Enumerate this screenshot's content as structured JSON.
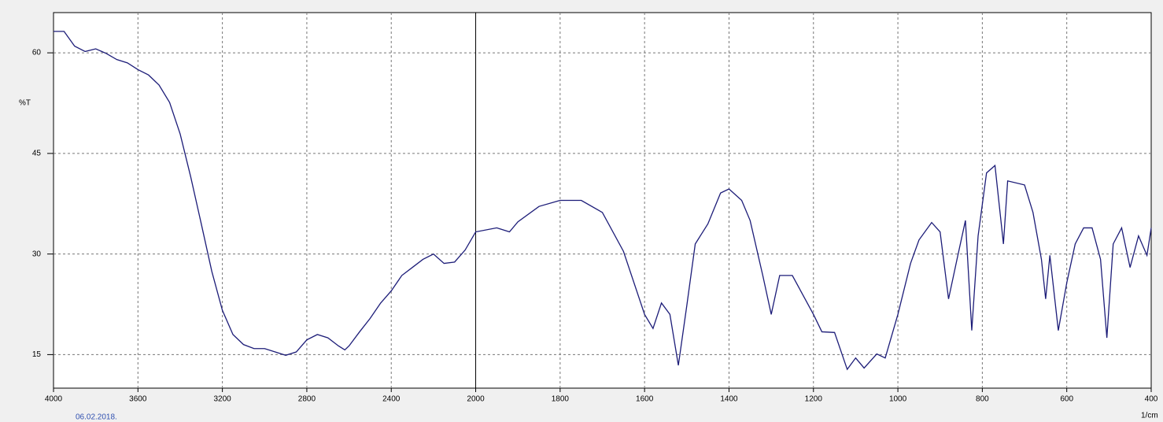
{
  "chart_data": {
    "type": "line",
    "y_label": "%T",
    "x_label": "1/cm",
    "date": "06.02.2018.",
    "xlim": [
      4000,
      400
    ],
    "xticks": [
      4000,
      3600,
      3200,
      2800,
      2400,
      2000,
      1800,
      1600,
      1400,
      1200,
      1000,
      800,
      600,
      400
    ],
    "ylim": [
      10,
      66
    ],
    "yticks": [
      15,
      30,
      45,
      60
    ],
    "grid": true,
    "x": [
      4000,
      3950,
      3900,
      3850,
      3800,
      3750,
      3700,
      3650,
      3600,
      3550,
      3500,
      3450,
      3400,
      3350,
      3300,
      3250,
      3200,
      3150,
      3100,
      3050,
      3000,
      2950,
      2900,
      2850,
      2800,
      2750,
      2700,
      2650,
      2620,
      2600,
      2550,
      2500,
      2450,
      2400,
      2350,
      2300,
      2250,
      2200,
      2150,
      2100,
      2050,
      2000,
      1950,
      1920,
      1900,
      1850,
      1800,
      1750,
      1700,
      1650,
      1600,
      1580,
      1560,
      1540,
      1520,
      1500,
      1480,
      1450,
      1420,
      1400,
      1370,
      1350,
      1320,
      1300,
      1280,
      1250,
      1200,
      1180,
      1150,
      1120,
      1100,
      1080,
      1050,
      1030,
      1000,
      970,
      950,
      920,
      900,
      880,
      860,
      840,
      825,
      810,
      790,
      770,
      750,
      740,
      700,
      680,
      660,
      650,
      640,
      620,
      600,
      580,
      560,
      540,
      520,
      505,
      490,
      470,
      450,
      430,
      410,
      400
    ],
    "series": [
      {
        "color": "#1c1c78",
        "values": [
          63.2,
          63.2,
          61,
          60.2,
          60.6,
          59.9,
          59,
          58.5,
          57.5,
          56.7,
          55.2,
          52.6,
          47.9,
          41.5,
          34.5,
          27.4,
          21.6,
          18,
          16.5,
          15.9,
          15.9,
          15.4,
          14.9,
          15.4,
          17.2,
          18,
          17.5,
          16.3,
          15.7,
          16.3,
          18.4,
          20.4,
          22.7,
          24.5,
          26.8,
          28,
          29.2,
          30,
          28.6,
          28.8,
          30.6,
          33.3,
          33.9,
          33.3,
          34.8,
          37.1,
          38,
          38,
          36.2,
          30.4,
          21,
          18.9,
          22.7,
          21,
          13.4,
          22.3,
          31.5,
          34.5,
          39.1,
          39.7,
          38,
          35,
          26.8,
          21,
          26.8,
          26.8,
          21,
          18.4,
          18.3,
          12.8,
          14.5,
          13,
          15.1,
          14.5,
          21,
          28.6,
          32.1,
          34.7,
          33.3,
          23.3,
          29.2,
          35,
          18.6,
          32.7,
          42.1,
          43.2,
          31.5,
          40.9,
          40.3,
          36.2,
          29.2,
          23.3,
          29.8,
          18.6,
          25.7,
          31.5,
          33.9,
          33.9,
          29.2,
          17.5,
          31.5,
          33.9,
          28,
          32.7,
          29.8,
          33.9
        ]
      }
    ]
  }
}
